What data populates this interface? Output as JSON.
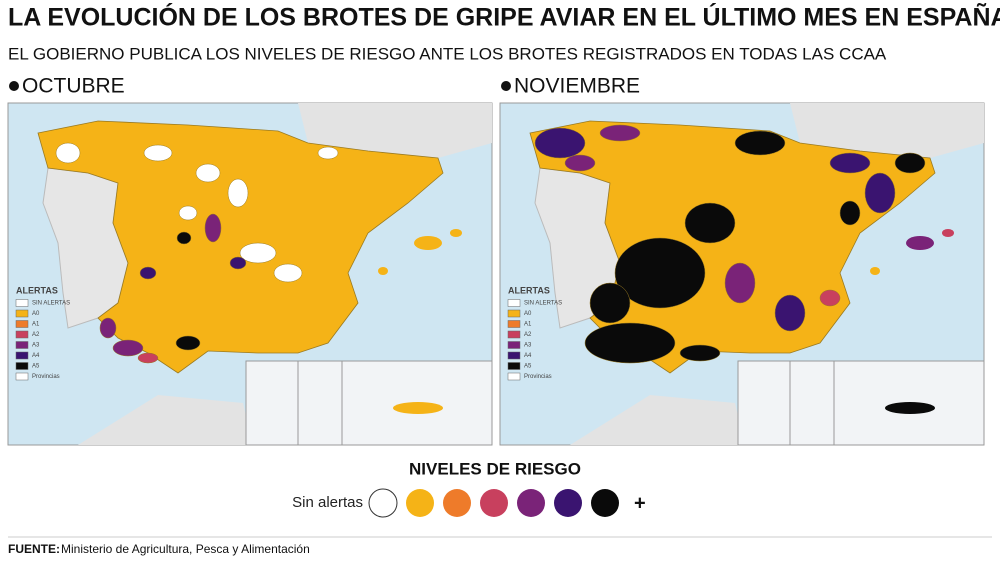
{
  "header": {
    "title": "LA EVOLUCIÓN DE LOS BROTES DE GRIPE AVIAR EN EL ÚLTIMO MES EN ESPAÑA",
    "subtitle": "EL GOBIERNO PUBLICA LOS NIVELES DE RIESGO ANTE LOS BROTES REGISTRADOS EN TODAS LAS CCAA"
  },
  "maps": [
    {
      "label": "OCTUBRE",
      "legend": {
        "title": "ALERTAS",
        "items": [
          "SIN ALERTAS",
          "A0",
          "A1",
          "A2",
          "A3",
          "A4",
          "A5",
          "Provincias"
        ]
      }
    },
    {
      "label": "NOVIEMBRE",
      "legend": {
        "title": "ALERTAS",
        "items": [
          "SIN ALERTAS",
          "A0",
          "A1",
          "A2",
          "A3",
          "A4",
          "A5",
          "Provincias"
        ]
      }
    }
  ],
  "risk_legend": {
    "title": "NIVELES DE RIESGO",
    "low_label": "Sin alertas",
    "high_label": "+"
  },
  "source": {
    "label": "FUENTE:",
    "text": "Ministerio de Agricultura, Pesca y Alimentación"
  }
}
